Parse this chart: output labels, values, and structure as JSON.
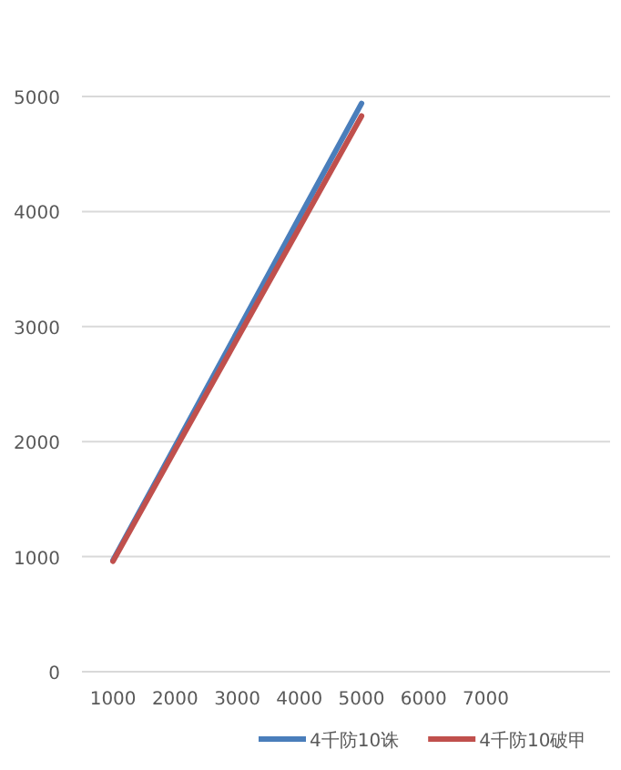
{
  "chart_data": {
    "type": "line",
    "x": [
      1000,
      2000,
      3000,
      4000,
      5000
    ],
    "series": [
      {
        "name": "4千防10诛",
        "color": "#4a7ebb",
        "values": [
          970,
          1960,
          2955,
          3950,
          4940
        ]
      },
      {
        "name": "4千防10破甲",
        "color": "#c0504d",
        "values": [
          960,
          1930,
          2895,
          3860,
          4830
        ]
      }
    ],
    "xlim": [
      500,
      9000
    ],
    "xticks": [
      1000,
      2000,
      3000,
      4000,
      5000,
      6000,
      7000
    ],
    "ylim": [
      0,
      5000
    ],
    "yticks": [
      0,
      1000,
      2000,
      3000,
      4000,
      5000
    ],
    "grid": "y",
    "legend": "bottom",
    "marker": "none",
    "line_style": "solid"
  }
}
